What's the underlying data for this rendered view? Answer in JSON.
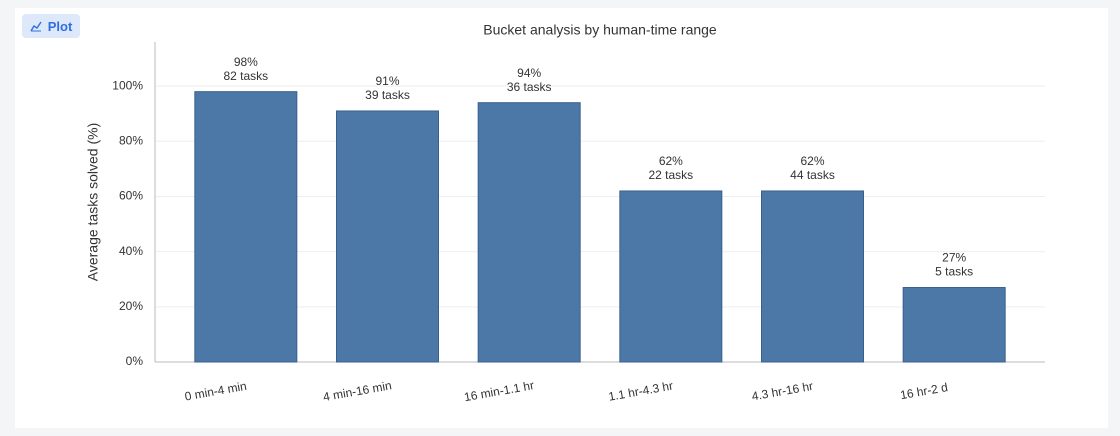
{
  "toolbar": {
    "button": "Plot"
  },
  "chart_data": {
    "type": "bar",
    "title": "Bucket analysis by human-time range",
    "y_label": "Average tasks solved (%)",
    "categories": [
      "0 min-4 min",
      "4 min-16 min",
      "16 min-1.1 hr",
      "1.1 hr-4.3 hr",
      "4.3 hr-16 hr",
      "16 hr-2 d"
    ],
    "values": [
      98,
      91,
      94,
      62,
      62,
      27
    ],
    "value_labels": [
      "98%",
      "91%",
      "94%",
      "62%",
      "62%",
      "27%"
    ],
    "task_labels": [
      "82 tasks",
      "39 tasks",
      "36 tasks",
      "22 tasks",
      "44 tasks",
      "5 tasks"
    ],
    "color": "#4c78a8",
    "ylim": [
      0,
      116
    ],
    "yticks": [
      {
        "value": 0,
        "label": "0%"
      },
      {
        "value": 20,
        "label": "20%"
      },
      {
        "value": 40,
        "label": "40%"
      },
      {
        "value": 60,
        "label": "60%"
      },
      {
        "value": 80,
        "label": "80%"
      },
      {
        "value": 100,
        "label": "100%"
      }
    ],
    "grid": true
  }
}
